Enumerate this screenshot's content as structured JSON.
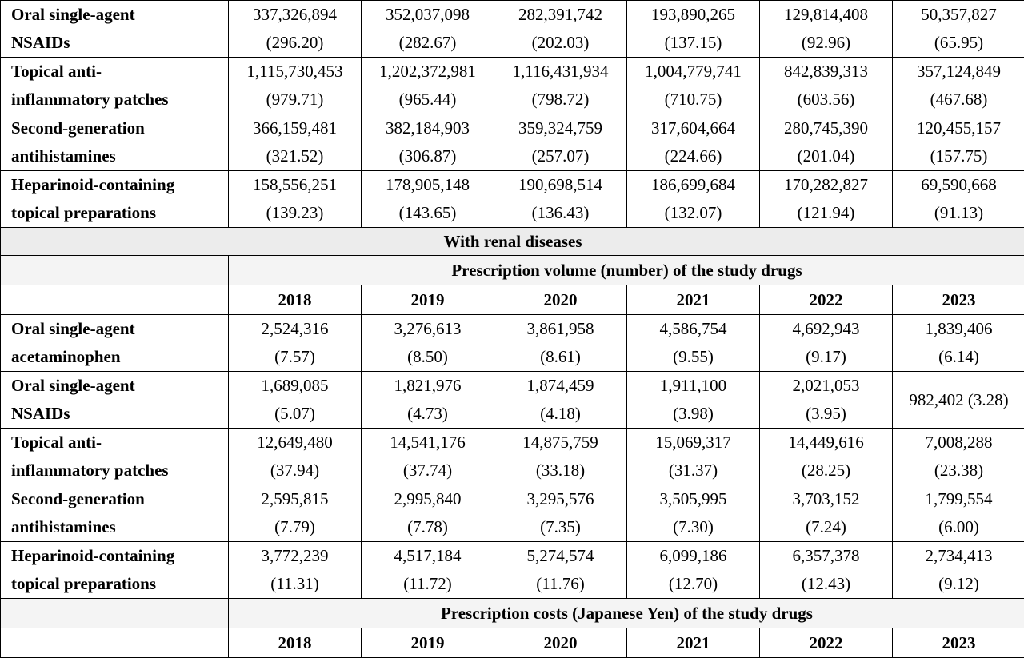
{
  "table": {
    "top_rows": [
      {
        "label": [
          "Oral single-agent",
          "NSAIDs"
        ],
        "cells": [
          [
            "337,326,894",
            "(296.20)"
          ],
          [
            "352,037,098",
            "(282.67)"
          ],
          [
            "282,391,742",
            "(202.03)"
          ],
          [
            "193,890,265",
            "(137.15)"
          ],
          [
            "129,814,408",
            "(92.96)"
          ],
          [
            "50,357,827",
            "(65.95)"
          ]
        ]
      },
      {
        "label": [
          "Topical anti-",
          "inflammatory patches"
        ],
        "cells": [
          [
            "1,115,730,453",
            "(979.71)"
          ],
          [
            "1,202,372,981",
            "(965.44)"
          ],
          [
            "1,116,431,934",
            "(798.72)"
          ],
          [
            "1,004,779,741",
            "(710.75)"
          ],
          [
            "842,839,313",
            "(603.56)"
          ],
          [
            "357,124,849",
            "(467.68)"
          ]
        ]
      },
      {
        "label": [
          "Second-generation",
          "antihistamines"
        ],
        "cells": [
          [
            "366,159,481",
            "(321.52)"
          ],
          [
            "382,184,903",
            "(306.87)"
          ],
          [
            "359,324,759",
            "(257.07)"
          ],
          [
            "317,604,664",
            "(224.66)"
          ],
          [
            "280,745,390",
            "(201.04)"
          ],
          [
            "120,455,157",
            "(157.75)"
          ]
        ]
      },
      {
        "label": [
          "Heparinoid-containing",
          "topical preparations"
        ],
        "cells": [
          [
            "158,556,251",
            "(139.23)"
          ],
          [
            "178,905,148",
            "(143.65)"
          ],
          [
            "190,698,514",
            "(136.43)"
          ],
          [
            "186,699,684",
            "(132.07)"
          ],
          [
            "170,282,827",
            "(121.94)"
          ],
          [
            "69,590,668",
            "(91.13)"
          ]
        ]
      }
    ],
    "section_title": "With renal diseases",
    "volume_header": "Prescription volume (number) of the study drugs",
    "years": [
      "2018",
      "2019",
      "2020",
      "2021",
      "2022",
      "2023"
    ],
    "volume_rows": [
      {
        "label": [
          "Oral single-agent",
          "acetaminophen"
        ],
        "cells": [
          [
            "2,524,316",
            "(7.57)"
          ],
          [
            "3,276,613",
            "(8.50)"
          ],
          [
            "3,861,958",
            "(8.61)"
          ],
          [
            "4,586,754",
            "(9.55)"
          ],
          [
            "4,692,943",
            "(9.17)"
          ],
          [
            "1,839,406",
            "(6.14)"
          ]
        ]
      },
      {
        "label": [
          "Oral single-agent",
          "NSAIDs"
        ],
        "cells": [
          [
            "1,689,085",
            "(5.07)"
          ],
          [
            "1,821,976",
            "(4.73)"
          ],
          [
            "1,874,459",
            "(4.18)"
          ],
          [
            "1,911,100",
            "(3.98)"
          ],
          [
            "2,021,053",
            "(3.95)"
          ],
          [
            "982,402 (3.28)",
            ""
          ]
        ]
      },
      {
        "label": [
          "Topical anti-",
          "inflammatory patches"
        ],
        "cells": [
          [
            "12,649,480",
            "(37.94)"
          ],
          [
            "14,541,176",
            "(37.74)"
          ],
          [
            "14,875,759",
            "(33.18)"
          ],
          [
            "15,069,317",
            "(31.37)"
          ],
          [
            "14,449,616",
            "(28.25)"
          ],
          [
            "7,008,288",
            "(23.38)"
          ]
        ]
      },
      {
        "label": [
          "Second-generation",
          "antihistamines"
        ],
        "cells": [
          [
            "2,595,815",
            "(7.79)"
          ],
          [
            "2,995,840",
            "(7.78)"
          ],
          [
            "3,295,576",
            "(7.35)"
          ],
          [
            "3,505,995",
            "(7.30)"
          ],
          [
            "3,703,152",
            "(7.24)"
          ],
          [
            "1,799,554",
            "(6.00)"
          ]
        ]
      },
      {
        "label": [
          "Heparinoid-containing",
          "topical preparations"
        ],
        "cells": [
          [
            "3,772,239",
            "(11.31)"
          ],
          [
            "4,517,184",
            "(11.72)"
          ],
          [
            "5,274,574",
            "(11.76)"
          ],
          [
            "6,099,186",
            "(12.70)"
          ],
          [
            "6,357,378",
            "(12.43)"
          ],
          [
            "2,734,413",
            "(9.12)"
          ]
        ]
      }
    ],
    "cost_header": "Prescription costs (Japanese Yen) of the study drugs"
  }
}
